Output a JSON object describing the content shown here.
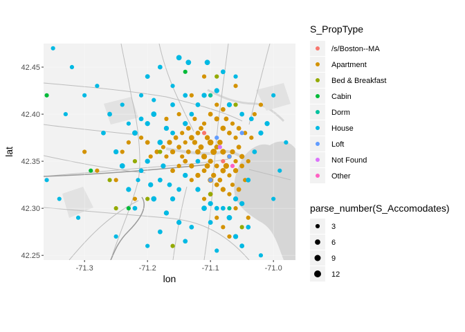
{
  "chart_data": {
    "type": "scatter",
    "title": "",
    "xlabel": "lon",
    "ylabel": "lat",
    "xlim": [
      -71.365,
      -70.965
    ],
    "ylim": [
      42.245,
      42.475
    ],
    "x_ticks": [
      {
        "value": -71.3,
        "label": "-71.3"
      },
      {
        "value": -71.2,
        "label": "-71.2"
      },
      {
        "value": -71.1,
        "label": "-71.1"
      },
      {
        "value": -71.0,
        "label": "-71.0"
      }
    ],
    "y_ticks": [
      {
        "value": 42.25,
        "label": "42.25"
      },
      {
        "value": 42.3,
        "label": "42.30"
      },
      {
        "value": 42.35,
        "label": "42.35"
      },
      {
        "value": 42.4,
        "label": "42.40"
      },
      {
        "value": 42.45,
        "label": "42.45"
      }
    ],
    "basemap": "street map background (light gray roads, parks, water)",
    "color_legend": {
      "title": "S_PropType",
      "entries": [
        {
          "label": "/s/Boston--MA",
          "color": "#F8766D"
        },
        {
          "label": "Apartment",
          "color": "#D39200"
        },
        {
          "label": "Bed & Breakfast",
          "color": "#93AA00"
        },
        {
          "label": "Cabin",
          "color": "#00BA38"
        },
        {
          "label": "Dorm",
          "color": "#00C19F"
        },
        {
          "label": "House",
          "color": "#00B9E3"
        },
        {
          "label": "Loft",
          "color": "#619CFF"
        },
        {
          "label": "Not Found",
          "color": "#DB72FB"
        },
        {
          "label": "Other",
          "color": "#FF61C3"
        }
      ]
    },
    "size_legend": {
      "title": "parse_number(S_Accomodates)",
      "entries": [
        {
          "label": "3",
          "value": 3
        },
        {
          "label": "6",
          "value": 6
        },
        {
          "label": "9",
          "value": 9
        },
        {
          "label": "12",
          "value": 12
        }
      ]
    },
    "series": [
      {
        "name": "Apartment",
        "points": [
          [
            -71.1,
            42.4,
            4
          ],
          [
            -71.09,
            42.395,
            5
          ],
          [
            -71.11,
            42.39,
            3
          ],
          [
            -71.08,
            42.385,
            6
          ],
          [
            -71.07,
            42.38,
            4
          ],
          [
            -71.06,
            42.375,
            3
          ],
          [
            -71.1,
            42.37,
            8
          ],
          [
            -71.09,
            42.365,
            5
          ],
          [
            -71.08,
            42.36,
            7
          ],
          [
            -71.07,
            42.355,
            4
          ],
          [
            -71.06,
            42.35,
            3
          ],
          [
            -71.05,
            42.355,
            5
          ],
          [
            -71.12,
            42.38,
            4
          ],
          [
            -71.13,
            42.375,
            6
          ],
          [
            -71.14,
            42.37,
            3
          ],
          [
            -71.15,
            42.365,
            4
          ],
          [
            -71.16,
            42.36,
            5
          ],
          [
            -71.17,
            42.355,
            3
          ],
          [
            -71.12,
            42.36,
            6
          ],
          [
            -71.11,
            42.355,
            7
          ],
          [
            -71.1,
            42.35,
            5
          ],
          [
            -71.09,
            42.345,
            4
          ],
          [
            -71.08,
            42.34,
            6
          ],
          [
            -71.07,
            42.335,
            3
          ],
          [
            -71.06,
            42.34,
            5
          ],
          [
            -71.05,
            42.345,
            4
          ],
          [
            -71.04,
            42.35,
            3
          ],
          [
            -71.11,
            42.34,
            4
          ],
          [
            -71.12,
            42.335,
            5
          ],
          [
            -71.13,
            42.33,
            3
          ],
          [
            -71.1,
            42.33,
            6
          ],
          [
            -71.09,
            42.325,
            4
          ],
          [
            -71.08,
            42.32,
            5
          ],
          [
            -71.07,
            42.315,
            3
          ],
          [
            -71.1,
            42.315,
            4
          ],
          [
            -71.11,
            42.31,
            3
          ],
          [
            -71.095,
            42.36,
            9
          ],
          [
            -71.085,
            42.37,
            6
          ],
          [
            -71.105,
            42.375,
            5
          ],
          [
            -71.115,
            42.385,
            4
          ],
          [
            -71.125,
            42.395,
            3
          ],
          [
            -71.135,
            42.385,
            4
          ],
          [
            -71.145,
            42.38,
            3
          ],
          [
            -71.155,
            42.375,
            4
          ],
          [
            -71.165,
            42.37,
            5
          ],
          [
            -71.175,
            42.365,
            3
          ],
          [
            -71.185,
            42.36,
            4
          ],
          [
            -71.195,
            42.355,
            3
          ],
          [
            -71.2,
            42.37,
            4
          ],
          [
            -71.21,
            42.375,
            3
          ],
          [
            -71.22,
            42.38,
            3
          ],
          [
            -71.23,
            42.37,
            3
          ],
          [
            -71.24,
            42.36,
            3
          ],
          [
            -71.075,
            42.395,
            4
          ],
          [
            -71.065,
            42.39,
            3
          ],
          [
            -71.055,
            42.385,
            4
          ],
          [
            -71.045,
            42.38,
            3
          ],
          [
            -71.035,
            42.375,
            3
          ],
          [
            -71.14,
            42.35,
            4
          ],
          [
            -71.15,
            42.345,
            3
          ],
          [
            -71.16,
            42.34,
            4
          ],
          [
            -71.13,
            42.345,
            5
          ],
          [
            -71.105,
            42.345,
            6
          ],
          [
            -71.095,
            42.335,
            5
          ],
          [
            -71.085,
            42.33,
            4
          ],
          [
            -71.065,
            42.325,
            3
          ],
          [
            -71.055,
            42.32,
            4
          ],
          [
            -71.045,
            42.33,
            3
          ],
          [
            -71.075,
            42.345,
            7
          ],
          [
            -71.065,
            42.36,
            5
          ],
          [
            -71.055,
            42.365,
            4
          ],
          [
            -71.115,
            42.365,
            6
          ],
          [
            -71.125,
            42.37,
            5
          ],
          [
            -71.135,
            42.36,
            4
          ],
          [
            -71.145,
            42.355,
            3
          ],
          [
            -71.09,
            42.41,
            3
          ],
          [
            -71.1,
            42.42,
            3
          ],
          [
            -71.08,
            42.405,
            4
          ],
          [
            -71.22,
            42.31,
            3
          ],
          [
            -71.25,
            42.33,
            3
          ],
          [
            -71.28,
            42.34,
            3
          ],
          [
            -71.3,
            42.36,
            3
          ],
          [
            -71.2,
            42.39,
            3
          ],
          [
            -71.17,
            42.395,
            3
          ],
          [
            -71.06,
            42.3,
            3
          ],
          [
            -71.09,
            42.29,
            3
          ],
          [
            -71.08,
            42.28,
            3
          ],
          [
            -71.07,
            42.27,
            3
          ],
          [
            -71.05,
            42.26,
            3
          ],
          [
            -71.11,
            42.44,
            3
          ],
          [
            -71.13,
            42.42,
            3
          ],
          [
            -71.15,
            42.4,
            3
          ],
          [
            -71.04,
            42.29,
            3
          ],
          [
            -71.03,
            42.4,
            3
          ],
          [
            -71.02,
            42.41,
            3
          ],
          [
            -71.06,
            42.43,
            3
          ]
        ]
      },
      {
        "name": "House",
        "points": [
          [
            -71.15,
            42.46,
            6
          ],
          [
            -71.135,
            42.455,
            6
          ],
          [
            -71.105,
            42.455,
            6
          ],
          [
            -71.18,
            42.45,
            4
          ],
          [
            -71.2,
            42.44,
            4
          ],
          [
            -71.21,
            42.42,
            3
          ],
          [
            -71.19,
            42.4,
            6
          ],
          [
            -71.2,
            42.39,
            5
          ],
          [
            -71.22,
            42.38,
            6
          ],
          [
            -71.18,
            42.37,
            6
          ],
          [
            -71.25,
            42.36,
            5
          ],
          [
            -71.24,
            42.345,
            6
          ],
          [
            -71.21,
            42.34,
            4
          ],
          [
            -71.23,
            42.32,
            5
          ],
          [
            -71.22,
            42.3,
            4
          ],
          [
            -71.19,
            42.31,
            6
          ],
          [
            -71.17,
            42.295,
            5
          ],
          [
            -71.15,
            42.285,
            5
          ],
          [
            -71.13,
            42.28,
            4
          ],
          [
            -71.11,
            42.3,
            6
          ],
          [
            -71.1,
            42.305,
            5
          ],
          [
            -71.09,
            42.3,
            4
          ],
          [
            -71.07,
            42.29,
            6
          ],
          [
            -71.06,
            42.27,
            5
          ],
          [
            -71.05,
            42.26,
            4
          ],
          [
            -71.04,
            42.28,
            4
          ],
          [
            -71.06,
            42.31,
            5
          ],
          [
            -71.04,
            42.33,
            4
          ],
          [
            -71.03,
            42.36,
            4
          ],
          [
            -71.02,
            42.38,
            5
          ],
          [
            -71.01,
            42.39,
            5
          ],
          [
            -71.035,
            42.395,
            4
          ],
          [
            -71.05,
            42.4,
            4
          ],
          [
            -71.07,
            42.41,
            5
          ],
          [
            -71.09,
            42.425,
            5
          ],
          [
            -71.11,
            42.42,
            5
          ],
          [
            -71.12,
            42.41,
            4
          ],
          [
            -71.14,
            42.42,
            4
          ],
          [
            -71.16,
            42.43,
            3
          ],
          [
            -71.13,
            42.4,
            4
          ],
          [
            -71.14,
            42.39,
            5
          ],
          [
            -71.16,
            42.38,
            4
          ],
          [
            -71.17,
            42.385,
            5
          ],
          [
            -71.12,
            42.35,
            4
          ],
          [
            -71.14,
            42.335,
            5
          ],
          [
            -71.15,
            42.32,
            4
          ],
          [
            -71.16,
            42.31,
            5
          ],
          [
            -71.18,
            42.33,
            4
          ],
          [
            -71.2,
            42.35,
            5
          ],
          [
            -71.27,
            42.38,
            4
          ],
          [
            -71.28,
            42.43,
            3
          ],
          [
            -71.32,
            42.45,
            3
          ],
          [
            -71.35,
            42.47,
            3
          ],
          [
            -71.3,
            42.42,
            3
          ],
          [
            -71.26,
            42.4,
            4
          ],
          [
            -71.24,
            42.41,
            3
          ],
          [
            -71.33,
            42.4,
            3
          ],
          [
            -71.36,
            42.33,
            3
          ],
          [
            -71.34,
            42.31,
            3
          ],
          [
            -71.31,
            42.29,
            3
          ],
          [
            -71.25,
            42.27,
            3
          ],
          [
            -71.2,
            42.26,
            3
          ],
          [
            -71.18,
            42.275,
            4
          ],
          [
            -71.14,
            42.265,
            4
          ],
          [
            -71.09,
            42.255,
            3
          ],
          [
            -71.02,
            42.25,
            3
          ],
          [
            -71.0,
            42.31,
            3
          ],
          [
            -70.99,
            42.34,
            3
          ],
          [
            -70.98,
            42.37,
            3
          ],
          [
            -71.0,
            42.42,
            3
          ],
          [
            -71.06,
            42.44,
            3
          ],
          [
            -71.08,
            42.445,
            4
          ],
          [
            -71.16,
            42.41,
            4
          ],
          [
            -71.19,
            42.415,
            3
          ],
          [
            -71.21,
            42.395,
            4
          ],
          [
            -71.23,
            42.39,
            3
          ],
          [
            -71.175,
            42.345,
            5
          ],
          [
            -71.165,
            42.325,
            4
          ],
          [
            -71.195,
            42.325,
            5
          ],
          [
            -71.215,
            42.33,
            3
          ],
          [
            -71.12,
            42.32,
            5
          ],
          [
            -71.1,
            42.285,
            4
          ],
          [
            -71.08,
            42.3,
            4
          ],
          [
            -71.05,
            42.305,
            5
          ]
        ]
      },
      {
        "name": "Bed & Breakfast",
        "points": [
          [
            -71.09,
            42.44,
            3
          ],
          [
            -71.2,
            42.31,
            3
          ],
          [
            -71.26,
            42.33,
            3
          ],
          [
            -71.1,
            42.315,
            3
          ],
          [
            -71.05,
            42.28,
            3
          ],
          [
            -71.25,
            42.3,
            3
          ],
          [
            -71.16,
            42.26,
            3
          ],
          [
            -71.18,
            42.36,
            3
          ],
          [
            -71.06,
            42.41,
            3
          ],
          [
            -71.22,
            42.35,
            3
          ]
        ]
      },
      {
        "name": "Cabin",
        "points": [
          [
            -71.29,
            42.34,
            3
          ],
          [
            -71.36,
            42.42,
            3
          ],
          [
            -71.14,
            42.445,
            3
          ],
          [
            -71.23,
            42.3,
            3
          ]
        ]
      },
      {
        "name": "Dorm",
        "points": [
          [
            -71.07,
            42.3,
            3
          ],
          [
            -71.1,
            42.42,
            3
          ]
        ]
      },
      {
        "name": "Loft",
        "points": [
          [
            -71.05,
            42.38,
            3
          ],
          [
            -71.07,
            42.355,
            3
          ],
          [
            -71.09,
            42.375,
            3
          ],
          [
            -71.1,
            42.33,
            3
          ]
        ]
      },
      {
        "name": "/s/Boston--MA",
        "points": [
          [
            -71.11,
            42.38,
            3
          ],
          [
            -71.08,
            42.35,
            3
          ]
        ]
      },
      {
        "name": "Not Found",
        "points": [
          [
            -71.085,
            42.365,
            3
          ]
        ]
      },
      {
        "name": "Other",
        "points": [
          [
            -71.065,
            42.345,
            3
          ]
        ]
      }
    ]
  }
}
